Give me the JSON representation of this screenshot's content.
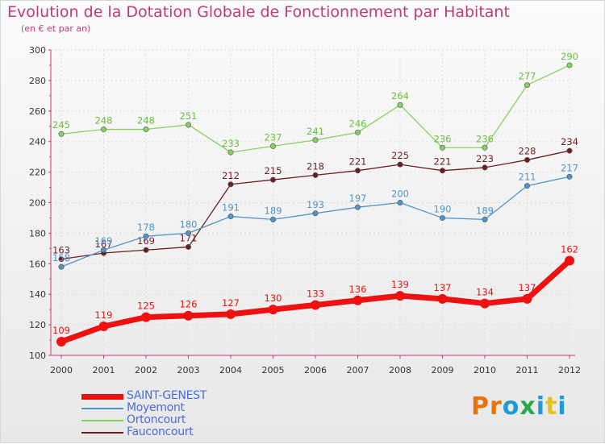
{
  "title": "Evolution de la Dotation Globale de Fonctionnement par Habitant",
  "subtitle": "(en € et par an)",
  "logo": {
    "text": "Proxiti",
    "colors": [
      "#e8730c",
      "#e8730c",
      "#1e9bd7",
      "#2ba84a",
      "#1e9bd7",
      "#e8c21c",
      "#1e9bd7"
    ]
  },
  "chart_data": {
    "type": "line",
    "title": "Evolution de la Dotation Globale de Fonctionnement par Habitant",
    "subtitle": "(en € et par an)",
    "x": [
      2000,
      2001,
      2002,
      2003,
      2004,
      2005,
      2006,
      2007,
      2008,
      2009,
      2010,
      2011,
      2012
    ],
    "ylim": [
      100,
      300
    ],
    "yticks": [
      100,
      120,
      140,
      160,
      180,
      200,
      220,
      240,
      260,
      280,
      300
    ],
    "grid": true,
    "legend_position": "bottom-left",
    "series": [
      {
        "name": "SAINT-GENEST",
        "color": "#ee1111",
        "label_color": "#ee1111",
        "values": [
          109,
          119,
          125,
          126,
          127,
          130,
          133,
          136,
          139,
          137,
          134,
          137,
          162
        ]
      },
      {
        "name": "Moyemont",
        "color": "#4f94c8",
        "label_color": "#4f94c8",
        "values": [
          158,
          169,
          178,
          180,
          191,
          189,
          193,
          197,
          200,
          190,
          189,
          211,
          217
        ]
      },
      {
        "name": "Ortoncourt",
        "color": "#88d060",
        "label_color": "#6bbf3f",
        "values": [
          245,
          248,
          248,
          251,
          233,
          237,
          241,
          246,
          264,
          236,
          236,
          277,
          290
        ]
      },
      {
        "name": "Fauconcourt",
        "color": "#6b1f24",
        "label_color": "#6b1f24",
        "values": [
          163,
          167,
          169,
          171,
          212,
          215,
          218,
          221,
          225,
          221,
          223,
          228,
          234
        ]
      }
    ]
  }
}
